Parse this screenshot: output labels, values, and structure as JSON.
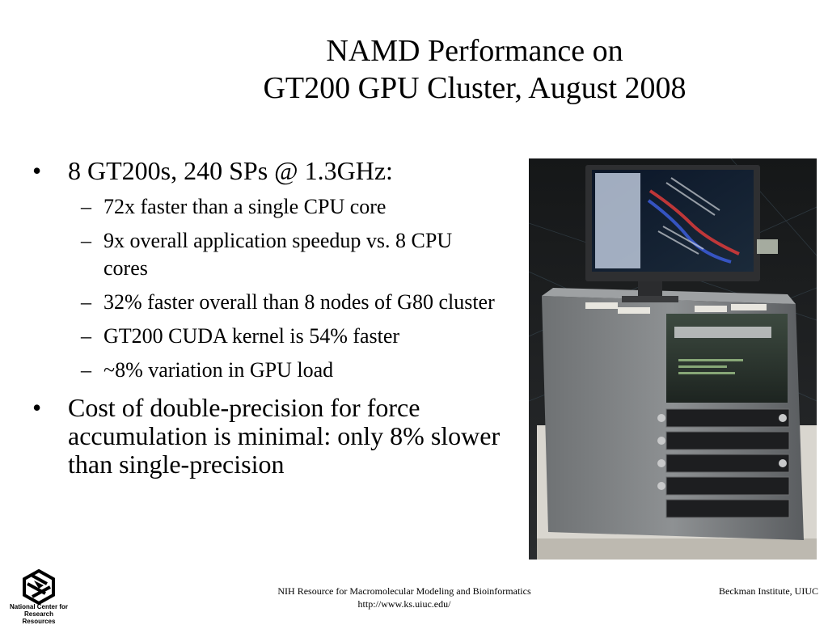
{
  "slide": {
    "title_line1": "NAMD Performance on",
    "title_line2": "GT200 GPU Cluster, August 2008",
    "bullets": [
      {
        "text": "8 GT200s, 240 SPs @ 1.3GHz:",
        "sub": [
          "72x faster than a single CPU core",
          "9x overall application speedup vs. 8 CPU cores",
          "32% faster overall than 8 nodes of G80 cluster",
          "GT200 CUDA kernel is 54% faster",
          "~8% variation in GPU load"
        ]
      },
      {
        "text": "Cost of double-precision for force accumulation is minimal: only 8% slower than single-precision"
      }
    ],
    "bullet_mark": "•",
    "sub_mark": "–"
  },
  "footer": {
    "logo_line1": "National Center for",
    "logo_line2": "Research Resources",
    "center_line1": "NIH Resource for Macromolecular Modeling and Bioinformatics",
    "center_line2": "http://www.ks.uiuc.edu/",
    "right": "Beckman Institute, UIUC"
  }
}
